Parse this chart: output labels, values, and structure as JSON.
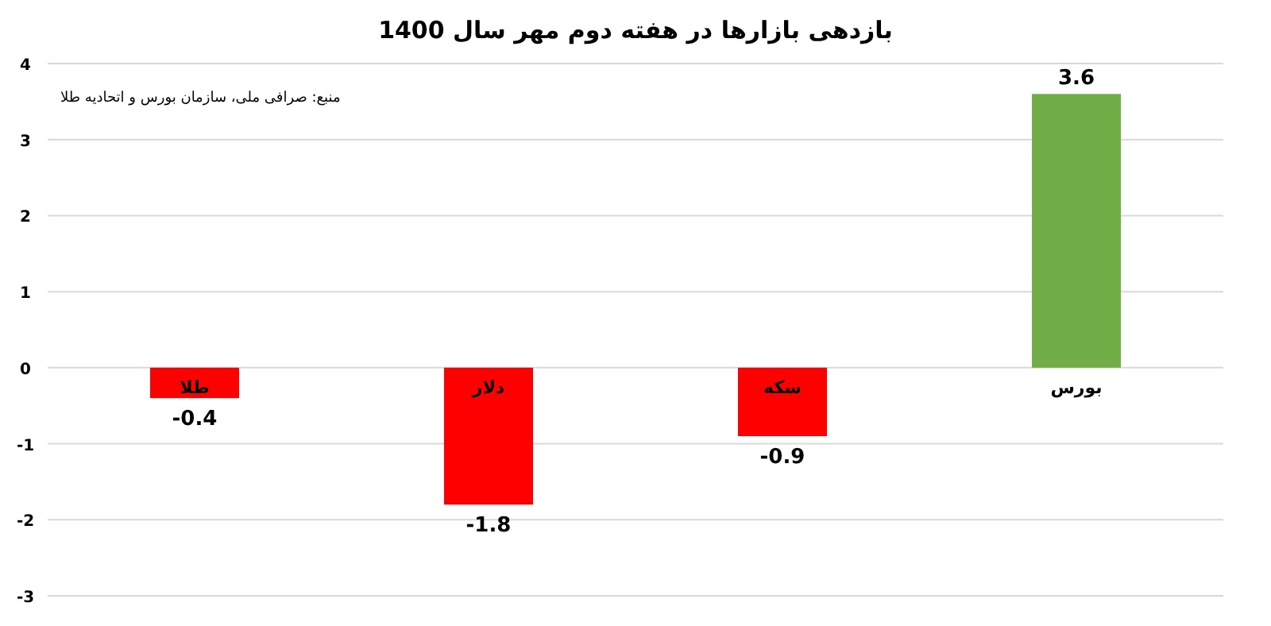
{
  "chart_data": {
    "type": "bar",
    "title": "بازدهی بازارها در هفته دوم مهر سال 1400",
    "annotations": [
      "منبع: صرافی ملی، سازمان بورس و اتحادیه طلا"
    ],
    "categories": [
      "طلا",
      "دلار",
      "سکه",
      "بورس"
    ],
    "values": [
      -0.4,
      -1.8,
      -0.9,
      3.6
    ],
    "colors": [
      "#ff0000",
      "#ff0000",
      "#ff0000",
      "#70ad47"
    ],
    "ylim": [
      -3,
      4
    ],
    "yticks": [
      -3,
      -2,
      -1,
      0,
      1,
      2,
      3,
      4
    ],
    "grid": "y",
    "data_labels": true
  }
}
